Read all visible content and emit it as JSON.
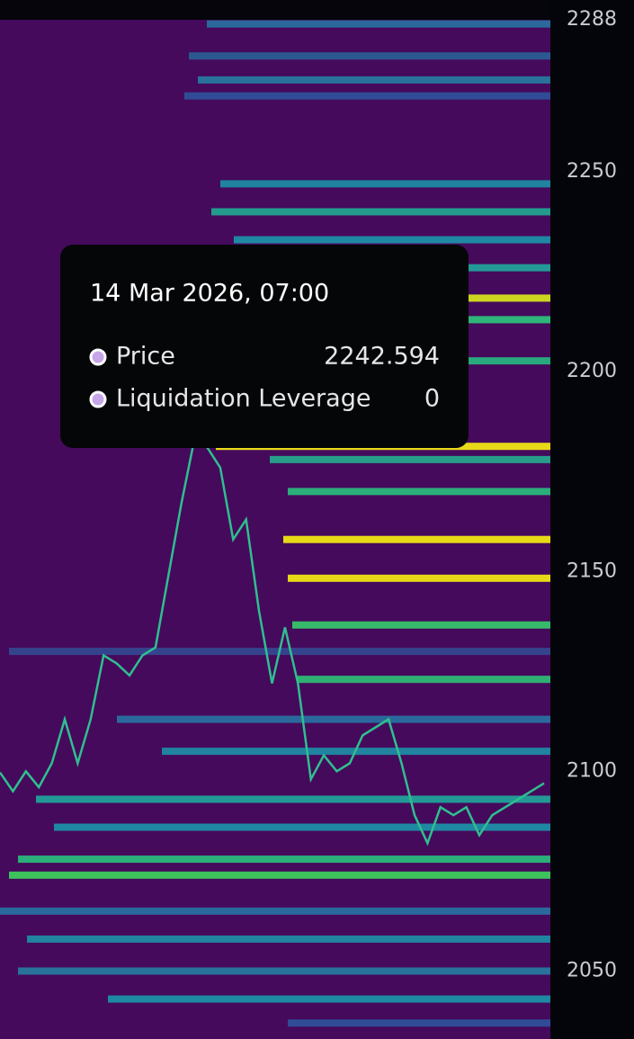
{
  "chart_data": {
    "type": "heatmap",
    "ylim": [
      2033,
      2293
    ],
    "yticks": [
      2050,
      2100,
      2150,
      2200,
      2250,
      2288
    ],
    "series": [
      {
        "name": "Price",
        "color": "#2fbf8f",
        "values": [
          2099.7,
          2095,
          2100,
          2096,
          2102,
          2113,
          2102,
          2113,
          2129,
          2127,
          2124,
          2129,
          2131,
          2149,
          2167,
          2183,
          2181,
          2176,
          2158,
          2163,
          2140,
          2122,
          2136,
          2122,
          2098,
          2104,
          2100,
          2102,
          2109,
          2111,
          2113,
          2102,
          2089,
          2082,
          2091,
          2089,
          2091,
          2084,
          2089,
          2091,
          2093,
          2095,
          2097
        ]
      }
    ],
    "liquidation_levels": [
      {
        "price": 2287,
        "color": "#2a6fa0"
      },
      {
        "price": 2279,
        "color": "#2b5d93"
      },
      {
        "price": 2273,
        "color": "#28789e"
      },
      {
        "price": 2269,
        "color": "#30509a"
      },
      {
        "price": 2247,
        "color": "#1f8aa3"
      },
      {
        "price": 2240,
        "color": "#21a38e"
      },
      {
        "price": 2233,
        "color": "#1d8fa6"
      },
      {
        "price": 2226,
        "color": "#22a19a"
      },
      {
        "price": 2218.4,
        "color": "#d4e21c"
      },
      {
        "price": 2213,
        "color": "#2dbf7a"
      },
      {
        "price": 2202.7,
        "color": "#28b27f"
      },
      {
        "price": 2181.3,
        "color": "#f1e514"
      },
      {
        "price": 2178,
        "color": "#26a58c"
      },
      {
        "price": 2170,
        "color": "#2bb77c"
      },
      {
        "price": 2158,
        "color": "#f1e514"
      },
      {
        "price": 2148.3,
        "color": "#f1e514"
      },
      {
        "price": 2136.6,
        "color": "#37c46a"
      },
      {
        "price": 2130,
        "color": "#35478f"
      },
      {
        "price": 2123,
        "color": "#2fbb74"
      },
      {
        "price": 2113,
        "color": "#2a6fa0"
      },
      {
        "price": 2105,
        "color": "#1f8aa3"
      },
      {
        "price": 2093,
        "color": "#22a19a"
      },
      {
        "price": 2086,
        "color": "#1d8fa6"
      },
      {
        "price": 2078,
        "color": "#2bb77c"
      },
      {
        "price": 2074,
        "color": "#3dcc5c"
      },
      {
        "price": 2065,
        "color": "#2a6fa0"
      },
      {
        "price": 2058,
        "color": "#1f8aa3"
      },
      {
        "price": 2050,
        "color": "#28789e"
      },
      {
        "price": 2043,
        "color": "#1d8fa6"
      },
      {
        "price": 2037,
        "color": "#30509a"
      }
    ]
  },
  "tooltip": {
    "date": "14 Mar 2026, 07:00",
    "rows": [
      {
        "label": "Price",
        "value": 2242.594
      },
      {
        "label": "Liquidation Leverage",
        "value": 0
      }
    ]
  }
}
